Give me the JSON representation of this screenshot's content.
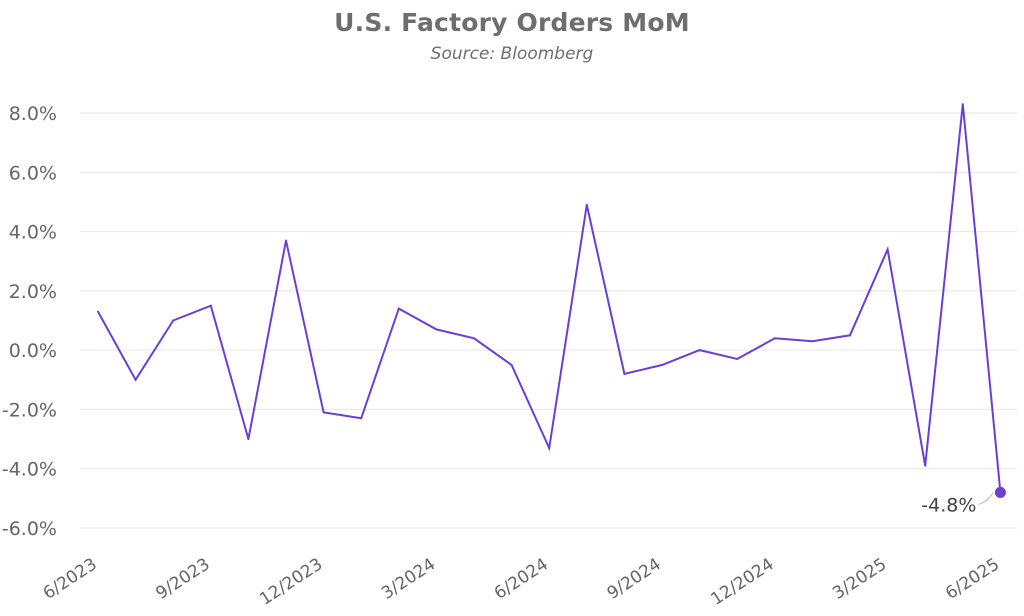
{
  "chart_data": {
    "type": "line",
    "title": "U.S. Factory Orders MoM",
    "subtitle": "Source: Bloomberg",
    "xlabel": "",
    "ylabel": "",
    "ylim": [
      -6,
      8
    ],
    "yticks": [
      "8.0%",
      "6.0%",
      "4.0%",
      "2.0%",
      "0.0%",
      "-2.0%",
      "-4.0%",
      "-6.0%"
    ],
    "ytick_values": [
      8,
      6,
      4,
      2,
      0,
      -2,
      -4,
      -6
    ],
    "xticks": [
      "6/2023",
      "9/2023",
      "12/2023",
      "3/2024",
      "6/2024",
      "9/2024",
      "12/2024",
      "3/2025",
      "6/2025"
    ],
    "xtick_positions": [
      0,
      3,
      6,
      9,
      12,
      15,
      18,
      21,
      24
    ],
    "grid": true,
    "line_color": "#6b3fd6",
    "grid_color": "#e6e6e6",
    "series": [
      {
        "x": [
          "6/2023",
          "7/2023",
          "8/2023",
          "9/2023",
          "10/2023",
          "11/2023",
          "12/2023",
          "1/2024",
          "2/2024",
          "3/2024",
          "4/2024",
          "5/2024",
          "6/2024",
          "7/2024",
          "8/2024",
          "9/2024",
          "10/2024",
          "11/2024",
          "12/2024",
          "1/2025",
          "2/2025",
          "3/2025",
          "4/2025",
          "5/2025",
          "6/2025"
        ],
        "values": [
          1.3,
          -1.0,
          1.0,
          1.5,
          -3.0,
          3.7,
          -2.1,
          -2.3,
          1.4,
          0.7,
          0.4,
          -0.5,
          -3.3,
          4.9,
          -0.8,
          -0.5,
          0.0,
          -0.3,
          0.4,
          0.3,
          0.5,
          3.4,
          -3.9,
          8.3,
          -4.8
        ]
      }
    ],
    "annotation": {
      "label": "-4.8%",
      "index": 24
    }
  }
}
